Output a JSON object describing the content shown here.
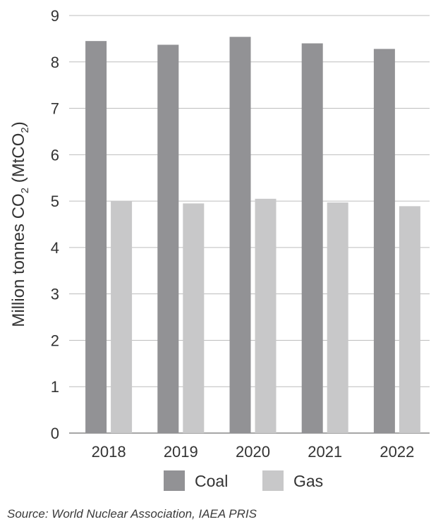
{
  "chart_data": {
    "type": "bar",
    "categories": [
      "2018",
      "2019",
      "2020",
      "2021",
      "2022"
    ],
    "series": [
      {
        "name": "Coal",
        "values": [
          8.45,
          8.37,
          8.54,
          8.4,
          8.28
        ]
      },
      {
        "name": "Gas",
        "values": [
          5.0,
          4.95,
          5.05,
          4.97,
          4.89
        ]
      }
    ],
    "ylabel_main": "Million tonnes CO",
    "ylabel_sub": "2",
    "ylabel_rest": " (MtCO",
    "ylabel_sub2": "2",
    "ylabel_end": ")",
    "ylim": [
      0,
      9
    ],
    "yticks": [
      0,
      1,
      2,
      3,
      4,
      5,
      6,
      7,
      8,
      9
    ],
    "grid": true,
    "legend_position": "bottom"
  },
  "colors": {
    "coal": "#929295",
    "gas": "#c8c8c9",
    "grid": "#bdbdbd",
    "axis": "#888888"
  },
  "source": "Source: World Nuclear Association, IAEA PRIS"
}
